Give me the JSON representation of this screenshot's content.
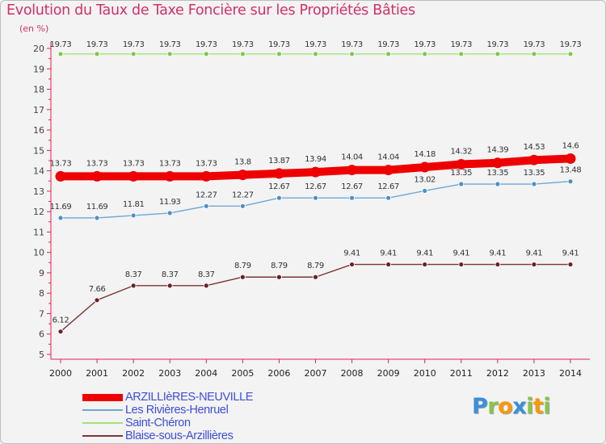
{
  "chart_data": {
    "type": "line",
    "title": "Evolution du Taux de Taxe Foncière sur les Propriétés Bâties",
    "unit_label": "(en %)",
    "categories": [
      "2000",
      "2001",
      "2002",
      "2003",
      "2004",
      "2005",
      "2006",
      "2007",
      "2008",
      "2009",
      "2010",
      "2011",
      "2012",
      "2013",
      "2014"
    ],
    "ylim": [
      5,
      20
    ],
    "yticks": [
      5,
      6,
      7,
      8,
      9,
      10,
      11,
      12,
      13,
      14,
      15,
      16,
      17,
      18,
      19,
      20
    ],
    "grid": false,
    "series": [
      {
        "name": "ARZILLIèRES-NEUVILLE",
        "color": "#ee0000",
        "point_color": "#ee0000",
        "values": [
          13.73,
          13.73,
          13.73,
          13.73,
          13.73,
          13.8,
          13.87,
          13.94,
          14.04,
          14.04,
          14.18,
          14.32,
          14.39,
          14.53,
          14.6
        ],
        "labels": [
          "13.73",
          "13.73",
          "13.73",
          "13.73",
          "13.73",
          "13.8",
          "13.87",
          "13.94",
          "14.04",
          "14.04",
          "14.18",
          "14.32",
          "14.39",
          "14.53",
          "14.6"
        ]
      },
      {
        "name": "Les Rivières-Henruel",
        "color": "#6fa8d6",
        "point_color": "#4a90c8",
        "values": [
          11.69,
          11.69,
          11.81,
          11.93,
          12.27,
          12.27,
          12.67,
          12.67,
          12.67,
          12.67,
          13.02,
          13.35,
          13.35,
          13.35,
          13.48
        ],
        "labels": [
          "11.69",
          "11.69",
          "11.81",
          "11.93",
          "12.27",
          "12.27",
          "12.67",
          "12.67",
          "12.67",
          "12.67",
          "13.02",
          "13.35",
          "13.35",
          "13.35",
          "13.48"
        ]
      },
      {
        "name": "Saint-Chéron",
        "color": "#a6e07a",
        "point_color": "#7cc94a",
        "values": [
          19.73,
          19.73,
          19.73,
          19.73,
          19.73,
          19.73,
          19.73,
          19.73,
          19.73,
          19.73,
          19.73,
          19.73,
          19.73,
          19.73,
          19.73
        ],
        "labels": [
          "19.73",
          "19.73",
          "19.73",
          "19.73",
          "19.73",
          "19.73",
          "19.73",
          "19.73",
          "19.73",
          "19.73",
          "19.73",
          "19.73",
          "19.73",
          "19.73",
          "19.73"
        ]
      },
      {
        "name": "Blaise-sous-Arzillières",
        "color": "#7a3535",
        "point_color": "#6a2222",
        "values": [
          6.12,
          7.66,
          8.37,
          8.37,
          8.37,
          8.79,
          8.79,
          8.79,
          9.41,
          9.41,
          9.41,
          9.41,
          9.41,
          9.41,
          9.41
        ],
        "labels": [
          "6.12",
          "7.66",
          "8.37",
          "8.37",
          "8.37",
          "8.79",
          "8.79",
          "8.79",
          "9.41",
          "9.41",
          "9.41",
          "9.41",
          "9.41",
          "9.41",
          "9.41"
        ]
      }
    ],
    "legend_position": "bottom-left"
  },
  "branding": {
    "logo_chars": [
      "P",
      "r",
      "o",
      "x",
      "i",
      "t",
      "i"
    ],
    "logo_colors": [
      "#3a8fd8",
      "#8bc34a",
      "#ff9800",
      "#3a8fd8",
      "#8bc34a",
      "#ff9800",
      "#8bc34a"
    ]
  }
}
